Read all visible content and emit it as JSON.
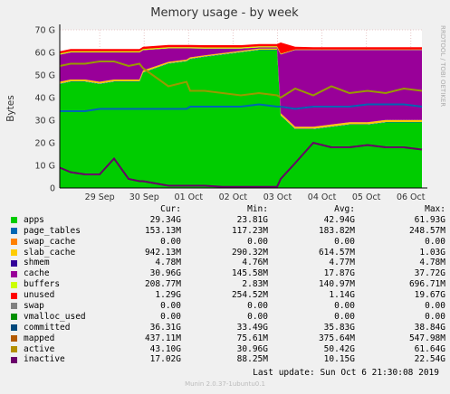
{
  "chart_data": {
    "type": "area",
    "title": "Memory usage - by week",
    "ylabel": "Bytes",
    "side_text": "RRDTOOL / TOBI OETIKER",
    "ylim": [
      0,
      70
    ],
    "yticks": [
      "0",
      "10 G",
      "20 G",
      "30 G",
      "40 G",
      "50 G",
      "60 G",
      "70 G"
    ],
    "xticks": [
      "29 Sep",
      "30 Sep",
      "01 Oct",
      "02 Oct",
      "03 Oct",
      "04 Oct",
      "05 Oct",
      "06 Oct"
    ],
    "x": [
      0,
      3,
      7,
      11,
      15,
      19,
      22,
      23,
      30,
      35,
      36,
      40,
      45,
      50,
      55,
      60,
      61,
      65,
      70,
      75,
      80,
      85,
      90,
      95,
      100
    ],
    "stack": [
      {
        "name": "apps",
        "color": "#00cc00",
        "values": [
          46,
          47,
          47,
          46,
          47,
          47,
          47,
          51,
          55,
          56,
          57,
          58,
          59,
          60,
          61,
          61,
          32,
          26,
          26,
          27,
          28,
          28,
          29,
          29,
          29
        ]
      },
      {
        "name": "page_tables",
        "color": "#0066b3",
        "values": [
          0.2,
          0.2,
          0.2,
          0.2,
          0.2,
          0.2,
          0.2,
          0.2,
          0.2,
          0.2,
          0.2,
          0.2,
          0.2,
          0.2,
          0.2,
          0.2,
          0.2,
          0.2,
          0.2,
          0.2,
          0.2,
          0.2,
          0.2,
          0.2,
          0.2
        ]
      },
      {
        "name": "slab_cache",
        "color": "#ffcc00",
        "values": [
          0.8,
          0.8,
          0.8,
          0.8,
          0.8,
          0.8,
          0.8,
          0.8,
          0.6,
          0.6,
          0.6,
          0.5,
          0.5,
          0.5,
          0.5,
          0.5,
          0.9,
          0.9,
          0.9,
          0.9,
          0.9,
          0.9,
          0.9,
          0.9,
          0.9
        ]
      },
      {
        "name": "cache",
        "color": "#990099",
        "values": [
          12,
          12,
          12,
          13,
          12,
          12,
          12,
          9,
          6,
          5,
          4,
          3,
          2,
          1,
          0.5,
          0.5,
          26,
          34,
          34,
          33,
          32,
          32,
          31,
          31,
          31
        ]
      },
      {
        "name": "buffers",
        "color": "#ccff00",
        "values": [
          0.5,
          0.5,
          0.5,
          0.5,
          0.5,
          0.5,
          0.5,
          0.5,
          0.5,
          0.5,
          0.5,
          0.5,
          0.5,
          0.5,
          0.5,
          0.5,
          0.3,
          0.2,
          0.2,
          0.2,
          0.2,
          0.2,
          0.2,
          0.2,
          0.2
        ]
      },
      {
        "name": "unused",
        "color": "#ff0000",
        "values": [
          1,
          1,
          1,
          1,
          1,
          1,
          1,
          1,
          1,
          1,
          1,
          1,
          1,
          1,
          1,
          1,
          5,
          1.2,
          1,
          1,
          1,
          1,
          1,
          1,
          1
        ]
      }
    ],
    "lines": [
      {
        "name": "committed",
        "color": "#0066b3",
        "values": [
          34,
          34,
          34,
          35,
          35,
          35,
          35,
          35,
          35,
          35,
          36,
          36,
          36,
          36,
          37,
          36,
          36,
          35,
          36,
          36,
          36,
          37,
          37,
          37,
          36
        ]
      },
      {
        "name": "active",
        "color": "#999900",
        "values": [
          54,
          55,
          55,
          56,
          56,
          54,
          55,
          53,
          45,
          47,
          43,
          43,
          42,
          41,
          42,
          41,
          40,
          44,
          41,
          45,
          42,
          43,
          42,
          44,
          43
        ]
      },
      {
        "name": "inactive",
        "color": "#660066",
        "values": [
          9,
          7,
          6,
          6,
          13,
          4,
          3,
          3,
          1,
          1,
          1,
          1,
          0.5,
          0.5,
          0.5,
          0.5,
          4,
          11,
          20,
          18,
          18,
          19,
          18,
          18,
          17
        ]
      }
    ],
    "legend_header": {
      "cur": "Cur:",
      "min": "Min:",
      "avg": "Avg:",
      "max": "Max:"
    },
    "legend": [
      {
        "name": "apps",
        "color": "#00cc00",
        "cur": "29.34G",
        "min": "23.81G",
        "avg": "42.94G",
        "max": "61.93G"
      },
      {
        "name": "page_tables",
        "color": "#0066b3",
        "cur": "153.13M",
        "min": "117.23M",
        "avg": "183.82M",
        "max": "248.57M"
      },
      {
        "name": "swap_cache",
        "color": "#ff8000",
        "cur": "0.00",
        "min": "0.00",
        "avg": "0.00",
        "max": "0.00"
      },
      {
        "name": "slab_cache",
        "color": "#ffcc00",
        "cur": "942.13M",
        "min": "290.32M",
        "avg": "614.57M",
        "max": "1.03G"
      },
      {
        "name": "shmem",
        "color": "#330099",
        "cur": "4.78M",
        "min": "4.76M",
        "avg": "4.77M",
        "max": "4.78M"
      },
      {
        "name": "cache",
        "color": "#990099",
        "cur": "30.96G",
        "min": "145.58M",
        "avg": "17.87G",
        "max": "37.72G"
      },
      {
        "name": "buffers",
        "color": "#ccff00",
        "cur": "208.77M",
        "min": "2.83M",
        "avg": "140.97M",
        "max": "696.71M"
      },
      {
        "name": "unused",
        "color": "#ff0000",
        "cur": "1.29G",
        "min": "254.52M",
        "avg": "1.14G",
        "max": "19.67G"
      },
      {
        "name": "swap",
        "color": "#808080",
        "cur": "0.00",
        "min": "0.00",
        "avg": "0.00",
        "max": "0.00"
      },
      {
        "name": "vmalloc_used",
        "color": "#008f00",
        "cur": "0.00",
        "min": "0.00",
        "avg": "0.00",
        "max": "0.00"
      },
      {
        "name": "committed",
        "color": "#00487d",
        "cur": "36.31G",
        "min": "33.49G",
        "avg": "35.83G",
        "max": "38.84G"
      },
      {
        "name": "mapped",
        "color": "#b35a00",
        "cur": "437.11M",
        "min": "75.61M",
        "avg": "375.64M",
        "max": "547.98M"
      },
      {
        "name": "active",
        "color": "#b38f00",
        "cur": "43.10G",
        "min": "30.96G",
        "avg": "50.42G",
        "max": "61.64G"
      },
      {
        "name": "inactive",
        "color": "#6b006b",
        "cur": "17.02G",
        "min": "88.25M",
        "avg": "10.15G",
        "max": "22.54G"
      }
    ]
  },
  "last_update": "Last update: Sun Oct  6 21:30:08 2019",
  "footer": "Munin 2.0.37-1ubuntu0.1"
}
